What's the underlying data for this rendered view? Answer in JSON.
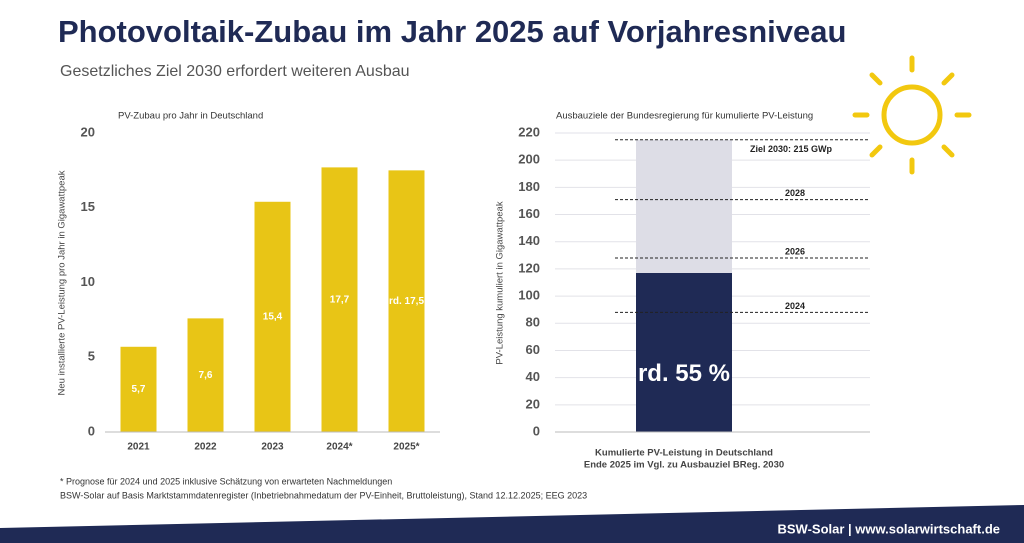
{
  "title": "Photovoltaik-Zubau im Jahr 2025 auf Vorjahresniveau",
  "subtitle": "Gesetzliches Ziel 2030 erfordert weiteren Ausbau",
  "chart_data": [
    {
      "type": "bar",
      "title": "PV-Zubau pro Jahr in Deutschland",
      "y_label": "Neu installierte PV-Leistung pro Jahr in Gigawattpeak",
      "categories": [
        "2021",
        "2022",
        "2023",
        "2024*",
        "2025*"
      ],
      "values": [
        5.7,
        7.6,
        15.4,
        17.7,
        17.5
      ],
      "value_labels": [
        "5,7",
        "7,6",
        "15,4",
        "17,7",
        "rd. 17,5"
      ],
      "color": "#e8c516",
      "ylim": [
        0,
        20
      ],
      "yticks": [
        0,
        5,
        10,
        15,
        20
      ],
      "grid": false
    },
    {
      "type": "stacked-bar",
      "title": "Ausbauziele der Bundesregierung für kumulierte PV-Leistung",
      "y_label": "PV-Leistung kumuliert in Gigawattpeak",
      "category_label": [
        "Kumulierte PV-Leistung in Deutschland",
        "Ende 2025 im Vgl. zu Ausbauziel BReg. 2030"
      ],
      "values": [
        117,
        98
      ],
      "colors": [
        "#1f2a55",
        "#dddde6"
      ],
      "annotation": "rd. 55 %",
      "targets": [
        {
          "label": "Ziel 2030: 215 GWp",
          "value": 215
        },
        {
          "label": "2028",
          "value": 171
        },
        {
          "label": "2026",
          "value": 128
        },
        {
          "label": "2024",
          "value": 88
        }
      ],
      "ylim": [
        0,
        220
      ],
      "yticks": [
        0,
        20,
        40,
        60,
        80,
        100,
        120,
        140,
        160,
        180,
        200,
        220
      ],
      "grid": true
    }
  ],
  "footnotes": [
    "* Prognose für 2024 und 2025 inklusive Schätzung von erwarteten Nachmeldungen",
    "BSW-Solar auf Basis Marktstammdatenregister (Inbetriebnahmedatum der PV-Einheit, Bruttoleistung), Stand 12.12.2025; EEG 2023"
  ],
  "footer": "BSW-Solar | www.solarwirtschaft.de"
}
